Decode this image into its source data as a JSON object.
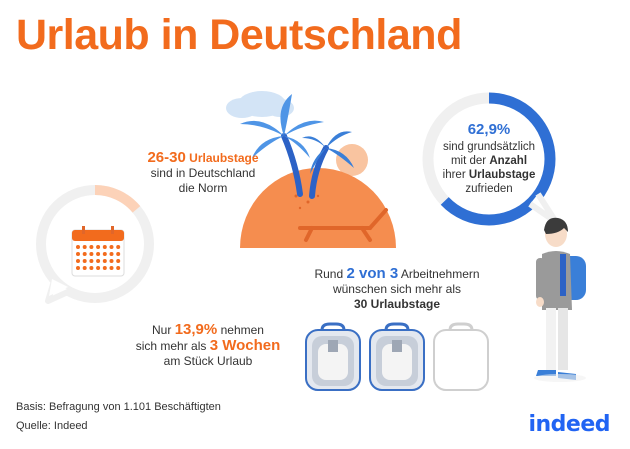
{
  "title": "Urlaub in Deutschland",
  "stat_days": {
    "number": "26-30",
    "bold": "Urlaubstage",
    "line2": "sind in Deutschland",
    "line3": "die Norm"
  },
  "stat_three_weeks": {
    "prefix": "Nur",
    "percent": "13,9%",
    "line1_rest": "nehmen",
    "line2_prefix": "sich mehr als",
    "weeks": "3 Wochen",
    "line3": "am Stück Urlaub",
    "ring_fraction": 0.139
  },
  "stat_satisfied": {
    "percent": "62,9%",
    "line2": "sind grundsätzlich",
    "line3_prefix": "mit der",
    "line3_bold": "Anzahl",
    "line4_prefix": "ihrer",
    "line4_bold": "Urlaubstage",
    "line5": "zufrieden",
    "ring_fraction": 0.629
  },
  "stat_want_more": {
    "prefix": "Rund",
    "bold": "2 von 3",
    "line1_rest": "Arbeitnehmern",
    "line2": "wünschen sich mehr als",
    "line3_bold": "30 Urlaubstage",
    "filled": 2,
    "total": 3
  },
  "footer": {
    "basis": "Basis: Befragung von 1.101 Beschäftigten",
    "source": "Quelle: Indeed"
  },
  "logo": "indeed",
  "colors": {
    "orange": "#f26b1d",
    "blue": "#2f6fd4",
    "light_orange": "#fcd9c4",
    "gray": "#f0f0f0"
  }
}
